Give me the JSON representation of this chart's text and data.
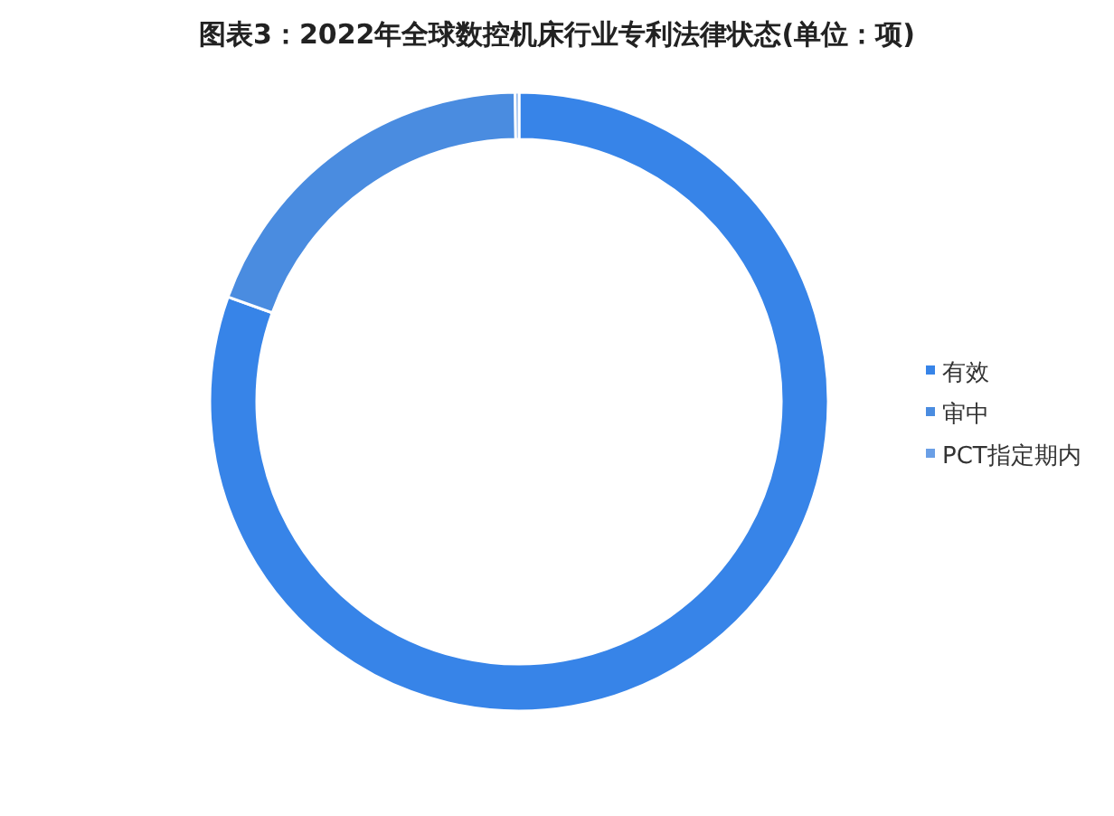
{
  "chart_data": {
    "type": "donut",
    "title": "图表3：2022年全球数控机床行业专利法律状态(单位：项)",
    "categories": [
      "有效",
      "审中",
      "PCT指定期内"
    ],
    "values": [
      80.5,
      19.3,
      0.2
    ],
    "colors": [
      "#3784e8",
      "#4a8ce0",
      "#6a9fe6"
    ],
    "legend": "right"
  }
}
